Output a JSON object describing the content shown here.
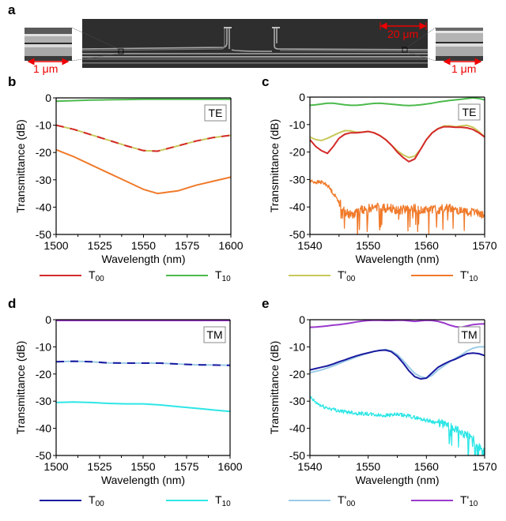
{
  "panel_a": {
    "label": "a",
    "scale_main": "20 μm",
    "scale_left_inset": "1 μm",
    "scale_right_inset": "1 μm"
  },
  "legends": [
    {
      "items": [
        {
          "base": "T",
          "sub": "00",
          "color": "#d42a2a"
        },
        {
          "base": "T",
          "sub": "10",
          "color": "#4cba4c"
        },
        {
          "base": "T'",
          "sub": "00",
          "color": "#c8c85a"
        },
        {
          "base": "T'",
          "sub": "10",
          "color": "#f07a2a"
        }
      ]
    },
    {
      "items": [
        {
          "base": "T",
          "sub": "00",
          "color": "#1a1aa0"
        },
        {
          "base": "T",
          "sub": "10",
          "color": "#2ee6e6"
        },
        {
          "base": "T'",
          "sub": "00",
          "color": "#9ccbe6"
        },
        {
          "base": "T'",
          "sub": "10",
          "color": "#9a3acc"
        }
      ]
    }
  ],
  "chart_data": [
    {
      "id": "b",
      "label": "b",
      "type": "line",
      "mode": "TE",
      "xlabel": "Wavelength (nm)",
      "ylabel": "Transmittance (dB)",
      "xlim": [
        1500,
        1600
      ],
      "ylim": [
        -50,
        0
      ],
      "xticks": [
        1500,
        1525,
        1550,
        1575,
        1600
      ],
      "yticks": [
        0,
        -10,
        -20,
        -30,
        -40,
        -50
      ],
      "x": [
        1500,
        1510,
        1520,
        1530,
        1540,
        1550,
        1558,
        1570,
        1580,
        1590,
        1600
      ],
      "series": [
        {
          "name": "T10",
          "color": "#4cba4c",
          "values": [
            -1.2,
            -1.0,
            -0.8,
            -0.7,
            -0.6,
            -0.5,
            -0.5,
            -0.5,
            -0.5,
            -0.5,
            -0.5
          ]
        },
        {
          "name": "T'00",
          "color": "#c8c85a",
          "values": [
            -10,
            -11.5,
            -13.5,
            -15.5,
            -17.5,
            -19.3,
            -19.5,
            -17.5,
            -15.8,
            -14.5,
            -13.7
          ]
        },
        {
          "name": "T00",
          "color": "#d42a2a",
          "dashed": true,
          "values": [
            -10,
            -11.5,
            -13.5,
            -15.5,
            -17.5,
            -19.3,
            -19.5,
            -17.5,
            -15.8,
            -14.5,
            -13.7
          ]
        },
        {
          "name": "T'10",
          "color": "#f07a2a",
          "values": [
            -19,
            -21.5,
            -24.5,
            -27.5,
            -30.5,
            -33.5,
            -35,
            -34,
            -32,
            -30.5,
            -29
          ]
        }
      ]
    },
    {
      "id": "c",
      "label": "c",
      "type": "line",
      "mode": "TE",
      "xlabel": "Wavelength (nm)",
      "ylabel": "Transmittance (dB)",
      "xlim": [
        1540,
        1570
      ],
      "ylim": [
        -50,
        0
      ],
      "xticks": [
        1540,
        1550,
        1560,
        1570
      ],
      "yticks": [
        0,
        -10,
        -20,
        -30,
        -40,
        -50
      ],
      "x": [
        1540,
        1541,
        1542,
        1543,
        1544,
        1545,
        1546,
        1547,
        1548,
        1549,
        1550,
        1551,
        1552,
        1553,
        1554,
        1555,
        1556,
        1557,
        1558,
        1559,
        1560,
        1561,
        1562,
        1563,
        1564,
        1565,
        1566,
        1567,
        1568,
        1569,
        1570
      ],
      "series": [
        {
          "name": "T10",
          "color": "#4cba4c",
          "values": [
            -3,
            -2.8,
            -2.5,
            -2.2,
            -2.2,
            -2.5,
            -2.8,
            -3,
            -3,
            -2.8,
            -2.5,
            -2.3,
            -2.2,
            -2.4,
            -2.6,
            -2.8,
            -3,
            -3.1,
            -3,
            -2.8,
            -2.5,
            -2.2,
            -1.8,
            -1.5,
            -1.2,
            -1,
            -0.8,
            -0.5,
            -0.3,
            -0.5,
            -1
          ]
        },
        {
          "name": "T'00",
          "color": "#c8c85a",
          "values": [
            -14.5,
            -15.5,
            -15.8,
            -15,
            -14,
            -13,
            -12.2,
            -12.3,
            -12.8,
            -12.7,
            -12.5,
            -13,
            -14,
            -15.5,
            -17.5,
            -19.5,
            -21,
            -22,
            -21.5,
            -19,
            -15.5,
            -13,
            -11.5,
            -10.5,
            -10.5,
            -10.8,
            -10.5,
            -10.3,
            -11,
            -12.5,
            -14.5
          ]
        },
        {
          "name": "T00",
          "color": "#d42a2a",
          "values": [
            -15.5,
            -18,
            -19.5,
            -20.5,
            -18,
            -15,
            -13.5,
            -13,
            -13,
            -12.8,
            -12.5,
            -13,
            -14,
            -15.5,
            -17.5,
            -20,
            -22,
            -23.5,
            -22.5,
            -19,
            -15.5,
            -13,
            -11.5,
            -10.8,
            -10.8,
            -11,
            -11,
            -11.2,
            -11.8,
            -13,
            -14.5
          ]
        },
        {
          "name": "T'10",
          "color": "#f07a2a",
          "noisy": true,
          "values": [
            -30.5,
            -31,
            -31,
            -32,
            -35,
            -38,
            -42,
            -43,
            -42,
            -41,
            -40.5,
            -40,
            -40,
            -40.5,
            -40.5,
            -41.5,
            -41,
            -41,
            -40.5,
            -41,
            -40.5,
            -41,
            -41,
            -40.5,
            -40.5,
            -41,
            -41.5,
            -42,
            -42,
            -42.5,
            -43.5
          ]
        }
      ]
    },
    {
      "id": "d",
      "label": "d",
      "type": "line",
      "mode": "TM",
      "xlabel": "Wavelength (nm)",
      "ylabel": "Transmittance (dB)",
      "xlim": [
        1500,
        1600
      ],
      "ylim": [
        -50,
        0
      ],
      "xticks": [
        1500,
        1525,
        1550,
        1575,
        1600
      ],
      "yticks": [
        0,
        -10,
        -20,
        -30,
        -40,
        -50
      ],
      "x": [
        1500,
        1510,
        1520,
        1530,
        1540,
        1550,
        1560,
        1570,
        1580,
        1590,
        1600
      ],
      "series": [
        {
          "name": "T'10",
          "color": "#9a3acc",
          "values": [
            -0.3,
            -0.3,
            -0.3,
            -0.3,
            -0.3,
            -0.3,
            -0.3,
            -0.3,
            -0.3,
            -0.3,
            -0.3
          ]
        },
        {
          "name": "T'00",
          "color": "#9ccbe6",
          "values": [
            -15.5,
            -15.3,
            -15.5,
            -15.9,
            -16,
            -16,
            -16,
            -16.3,
            -16.6,
            -16.7,
            -16.8
          ]
        },
        {
          "name": "T00",
          "color": "#1a1aa0",
          "dashed": true,
          "values": [
            -15.5,
            -15.3,
            -15.5,
            -15.9,
            -16,
            -16,
            -16,
            -16.3,
            -16.6,
            -16.7,
            -16.8
          ]
        },
        {
          "name": "T10",
          "color": "#2ee6e6",
          "values": [
            -30.5,
            -30.3,
            -30.5,
            -30.8,
            -31,
            -31,
            -31.4,
            -32,
            -32.6,
            -33.2,
            -33.8
          ]
        }
      ]
    },
    {
      "id": "e",
      "label": "e",
      "type": "line",
      "mode": "TM",
      "xlabel": "Wavelength (nm)",
      "ylabel": "Transmittance (dB)",
      "xlim": [
        1540,
        1570
      ],
      "ylim": [
        -50,
        0
      ],
      "xticks": [
        1540,
        1550,
        1560,
        1570
      ],
      "yticks": [
        0,
        -10,
        -20,
        -30,
        -40,
        -50
      ],
      "x": [
        1540,
        1541,
        1542,
        1543,
        1544,
        1545,
        1546,
        1547,
        1548,
        1549,
        1550,
        1551,
        1552,
        1553,
        1554,
        1555,
        1556,
        1557,
        1558,
        1559,
        1560,
        1561,
        1562,
        1563,
        1564,
        1565,
        1566,
        1567,
        1568,
        1569,
        1570
      ],
      "series": [
        {
          "name": "T'10",
          "color": "#9a3acc",
          "values": [
            -2.8,
            -2.7,
            -2.5,
            -2.3,
            -2,
            -1.8,
            -1.5,
            -1.2,
            -0.8,
            -0.5,
            -0.3,
            -0.2,
            -0.2,
            -0.3,
            -0.3,
            -0.2,
            -0.2,
            -0.4,
            -0.6,
            -0.4,
            -0.2,
            -0.3,
            -0.6,
            -1.2,
            -2,
            -2.6,
            -2.8,
            -2.3,
            -1.8,
            -1.6,
            -1.5
          ]
        },
        {
          "name": "T'00",
          "color": "#9ccbe6",
          "values": [
            -19.5,
            -19,
            -18.5,
            -17.8,
            -17,
            -16.2,
            -15.3,
            -14.5,
            -13.7,
            -13,
            -12.3,
            -11.7,
            -11.3,
            -11,
            -11.5,
            -12.8,
            -15,
            -17.5,
            -19.8,
            -21,
            -21.5,
            -20.5,
            -18.5,
            -17,
            -15.5,
            -14.2,
            -13,
            -11.5,
            -10.5,
            -10,
            -10
          ]
        },
        {
          "name": "T00",
          "color": "#1a1aa0",
          "values": [
            -18.5,
            -18,
            -17.5,
            -17,
            -16.3,
            -15.5,
            -14.8,
            -14,
            -13.3,
            -12.7,
            -12.2,
            -11.7,
            -11.3,
            -11.2,
            -11.8,
            -13.5,
            -16,
            -18.8,
            -21,
            -21.8,
            -21.5,
            -19.5,
            -17.5,
            -16.3,
            -15.3,
            -14.5,
            -13.5,
            -12.5,
            -12.3,
            -12.5,
            -13.2
          ]
        },
        {
          "name": "T10",
          "color": "#2ee6e6",
          "noisy": true,
          "values": [
            -28.5,
            -30.5,
            -31.8,
            -32.5,
            -33,
            -33.5,
            -34,
            -34,
            -34.5,
            -34.5,
            -34.8,
            -35,
            -35.2,
            -35.2,
            -35,
            -35,
            -35.2,
            -35.5,
            -36,
            -36.5,
            -37,
            -37.5,
            -38,
            -38.5,
            -39.5,
            -40.5,
            -41.5,
            -42.5,
            -44,
            -47,
            -49
          ]
        }
      ]
    }
  ]
}
